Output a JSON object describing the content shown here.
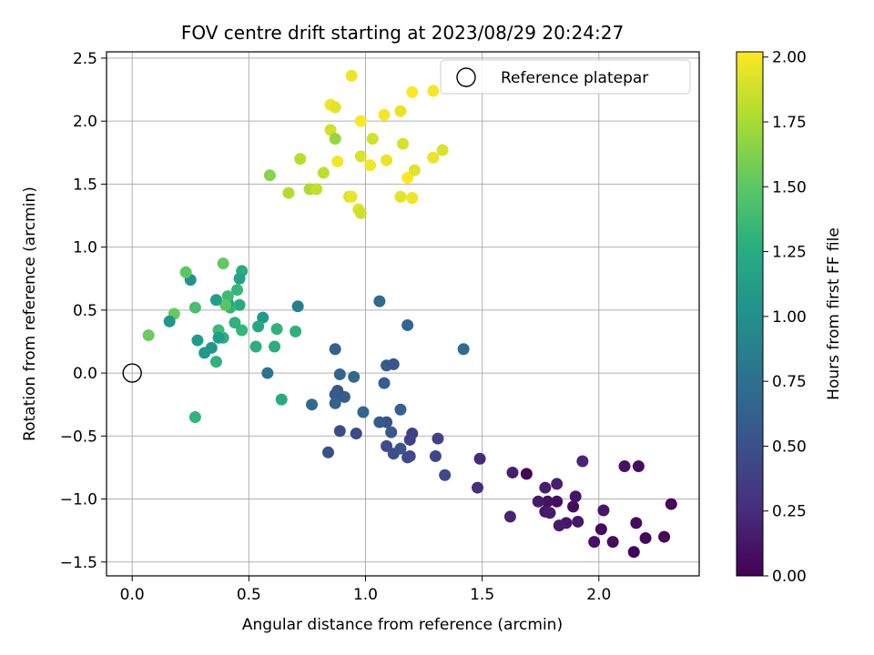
{
  "chart_data": {
    "type": "scatter",
    "title": "FOV centre drift starting at 2023/08/29 20:24:27",
    "xlabel": "Angular distance from reference (arcmin)",
    "ylabel": "Rotation from reference (arcmin)",
    "xlim": [
      -0.11,
      2.43
    ],
    "ylim": [
      -1.61,
      2.55
    ],
    "x_ticks": [
      0.0,
      0.5,
      1.0,
      1.5,
      2.0
    ],
    "x_tick_labels": [
      "0.0",
      "0.5",
      "1.0",
      "1.5",
      "2.0"
    ],
    "y_ticks": [
      -1.5,
      -1.0,
      -0.5,
      0.0,
      0.5,
      1.0,
      1.5,
      2.0,
      2.5
    ],
    "y_tick_labels": [
      "−1.5",
      "−1.0",
      "−0.5",
      "0.0",
      "0.5",
      "1.0",
      "1.5",
      "2.0",
      "2.5"
    ],
    "grid": true,
    "colormap": "viridis",
    "colorbar": {
      "label": "Hours from first FF file",
      "range": [
        0.0,
        2.02
      ],
      "ticks": [
        0.0,
        0.25,
        0.5,
        0.75,
        1.0,
        1.25,
        1.5,
        1.75,
        2.0
      ],
      "tick_labels": [
        "0.00",
        "0.25",
        "0.50",
        "0.75",
        "1.00",
        "1.25",
        "1.50",
        "1.75",
        "2.00"
      ]
    },
    "legend": {
      "position": "top-right",
      "entries": [
        {
          "label": "Reference platepar",
          "marker": "open-circle"
        }
      ]
    },
    "reference_point": {
      "x": 0.0,
      "y": 0.0
    },
    "series": [
      {
        "points": [
          [
            2.15,
            -1.42,
            0.02
          ],
          [
            2.2,
            -1.31,
            0.04
          ],
          [
            2.28,
            -1.3,
            0.03
          ],
          [
            2.31,
            -1.04,
            0.05
          ],
          [
            2.16,
            -1.19,
            0.06
          ],
          [
            2.17,
            -0.74,
            0.08
          ],
          [
            2.11,
            -0.74,
            0.1
          ],
          [
            2.06,
            -1.34,
            0.07
          ],
          [
            1.98,
            -1.34,
            0.09
          ],
          [
            2.01,
            -1.24,
            0.05
          ],
          [
            2.02,
            -1.09,
            0.12
          ],
          [
            1.89,
            -1.06,
            0.06
          ],
          [
            1.9,
            -0.98,
            0.11
          ],
          [
            1.91,
            -1.18,
            0.14
          ],
          [
            1.86,
            -1.19,
            0.13
          ],
          [
            1.83,
            -1.21,
            0.15
          ],
          [
            1.82,
            -1.02,
            0.08
          ],
          [
            1.78,
            -1.02,
            0.09
          ],
          [
            1.77,
            -1.1,
            0.12
          ],
          [
            1.79,
            -1.11,
            0.15
          ],
          [
            1.77,
            -0.91,
            0.16
          ],
          [
            1.82,
            -0.88,
            0.18
          ],
          [
            1.74,
            -1.02,
            0.14
          ],
          [
            1.69,
            -0.8,
            0.02
          ],
          [
            1.63,
            -0.79,
            0.17
          ],
          [
            1.62,
            -1.14,
            0.2
          ],
          [
            1.93,
            -0.7,
            0.21
          ],
          [
            1.49,
            -0.68,
            0.24
          ],
          [
            1.48,
            -0.91,
            0.27
          ],
          [
            1.34,
            -0.81,
            0.46
          ],
          [
            1.3,
            -0.66,
            0.42
          ],
          [
            1.31,
            -0.52,
            0.39
          ],
          [
            1.19,
            -0.66,
            0.43
          ],
          [
            1.18,
            -0.67,
            0.45
          ],
          [
            1.2,
            -0.48,
            0.38
          ],
          [
            1.19,
            -0.53,
            0.41
          ],
          [
            1.15,
            -0.6,
            0.52
          ],
          [
            1.12,
            -0.64,
            0.49
          ],
          [
            1.11,
            -0.47,
            0.55
          ],
          [
            1.09,
            -0.58,
            0.47
          ],
          [
            1.09,
            -0.39,
            0.51
          ],
          [
            1.06,
            -0.39,
            0.57
          ],
          [
            1.15,
            -0.29,
            0.62
          ],
          [
            1.08,
            -0.08,
            0.6
          ],
          [
            1.09,
            0.06,
            0.58
          ],
          [
            1.12,
            0.07,
            0.54
          ],
          [
            1.18,
            0.38,
            0.66
          ],
          [
            1.06,
            0.57,
            0.71
          ],
          [
            1.42,
            0.19,
            0.72
          ],
          [
            0.99,
            -0.31,
            0.64
          ],
          [
            0.96,
            -0.48,
            0.44
          ],
          [
            0.95,
            -0.03,
            0.68
          ],
          [
            0.89,
            -0.01,
            0.65
          ],
          [
            0.89,
            -0.46,
            0.48
          ],
          [
            0.91,
            -0.19,
            0.59
          ],
          [
            0.88,
            -0.14,
            0.53
          ],
          [
            0.87,
            -0.17,
            0.56
          ],
          [
            0.87,
            -0.24,
            0.63
          ],
          [
            0.87,
            0.19,
            0.61
          ],
          [
            0.84,
            -0.63,
            0.5
          ],
          [
            0.77,
            -0.25,
            0.69
          ],
          [
            0.71,
            0.53,
            0.86
          ],
          [
            0.7,
            0.33,
            1.28
          ],
          [
            0.64,
            -0.21,
            1.23
          ],
          [
            0.62,
            0.35,
            1.3
          ],
          [
            0.61,
            0.21,
            1.25
          ],
          [
            0.58,
            0.0,
            0.78
          ],
          [
            0.56,
            0.44,
            1.1
          ],
          [
            0.54,
            0.37,
            1.2
          ],
          [
            0.53,
            0.21,
            1.27
          ],
          [
            0.47,
            0.81,
            1.24
          ],
          [
            0.47,
            0.34,
            1.34
          ],
          [
            0.46,
            0.75,
            1.17
          ],
          [
            0.46,
            0.54,
            1.22
          ],
          [
            0.45,
            0.66,
            1.35
          ],
          [
            0.44,
            0.4,
            1.29
          ],
          [
            0.42,
            0.52,
            1.33
          ],
          [
            0.41,
            0.56,
            1.15
          ],
          [
            0.41,
            0.61,
            1.38
          ],
          [
            0.4,
            0.54,
            1.48
          ],
          [
            0.39,
            0.87,
            1.52
          ],
          [
            0.39,
            0.28,
            1.26
          ],
          [
            0.37,
            0.34,
            1.37
          ],
          [
            0.37,
            0.28,
            1.12
          ],
          [
            0.36,
            0.58,
            1.13
          ],
          [
            0.36,
            0.09,
            1.3
          ],
          [
            0.34,
            0.2,
            1.07
          ],
          [
            0.31,
            0.16,
            1.08
          ],
          [
            0.28,
            0.26,
            1.11
          ],
          [
            0.27,
            -0.35,
            1.31
          ],
          [
            0.27,
            0.52,
            1.42
          ],
          [
            0.25,
            0.74,
            1.04
          ],
          [
            0.23,
            0.8,
            1.5
          ],
          [
            0.18,
            0.47,
            1.53
          ],
          [
            0.16,
            0.41,
            1.06
          ],
          [
            0.07,
            0.3,
            1.55
          ],
          [
            0.59,
            1.57,
            1.65
          ],
          [
            0.67,
            1.43,
            1.78
          ],
          [
            0.72,
            1.7,
            1.8
          ],
          [
            0.76,
            1.46,
            1.76
          ],
          [
            0.79,
            1.46,
            1.84
          ],
          [
            0.82,
            1.59,
            1.82
          ],
          [
            0.85,
            2.13,
            1.98
          ],
          [
            0.85,
            1.93,
            1.88
          ],
          [
            0.87,
            1.86,
            1.7
          ],
          [
            0.87,
            2.11,
            1.94
          ],
          [
            0.88,
            1.68,
            1.99
          ],
          [
            0.93,
            1.4,
            1.9
          ],
          [
            0.94,
            1.4,
            1.96
          ],
          [
            0.94,
            2.36,
            1.97
          ],
          [
            0.97,
            1.3,
            1.92
          ],
          [
            0.98,
            1.72,
            1.91
          ],
          [
            0.98,
            1.27,
            1.87
          ],
          [
            0.98,
            2.0,
            2.01
          ],
          [
            1.02,
            1.65,
            1.99
          ],
          [
            1.03,
            1.86,
            1.89
          ],
          [
            1.08,
            2.05,
            2.0
          ],
          [
            1.09,
            1.69,
            1.96
          ],
          [
            1.15,
            1.4,
            1.94
          ],
          [
            1.15,
            2.08,
            1.95
          ],
          [
            1.16,
            1.82,
            1.9
          ],
          [
            1.18,
            1.55,
            2.02
          ],
          [
            1.2,
            2.23,
            2.02
          ],
          [
            1.2,
            1.39,
            1.97
          ],
          [
            1.21,
            1.61,
            1.93
          ],
          [
            1.29,
            1.71,
            1.96
          ],
          [
            1.29,
            2.24,
            1.99
          ],
          [
            1.33,
            1.77,
            1.91
          ]
        ]
      }
    ]
  }
}
